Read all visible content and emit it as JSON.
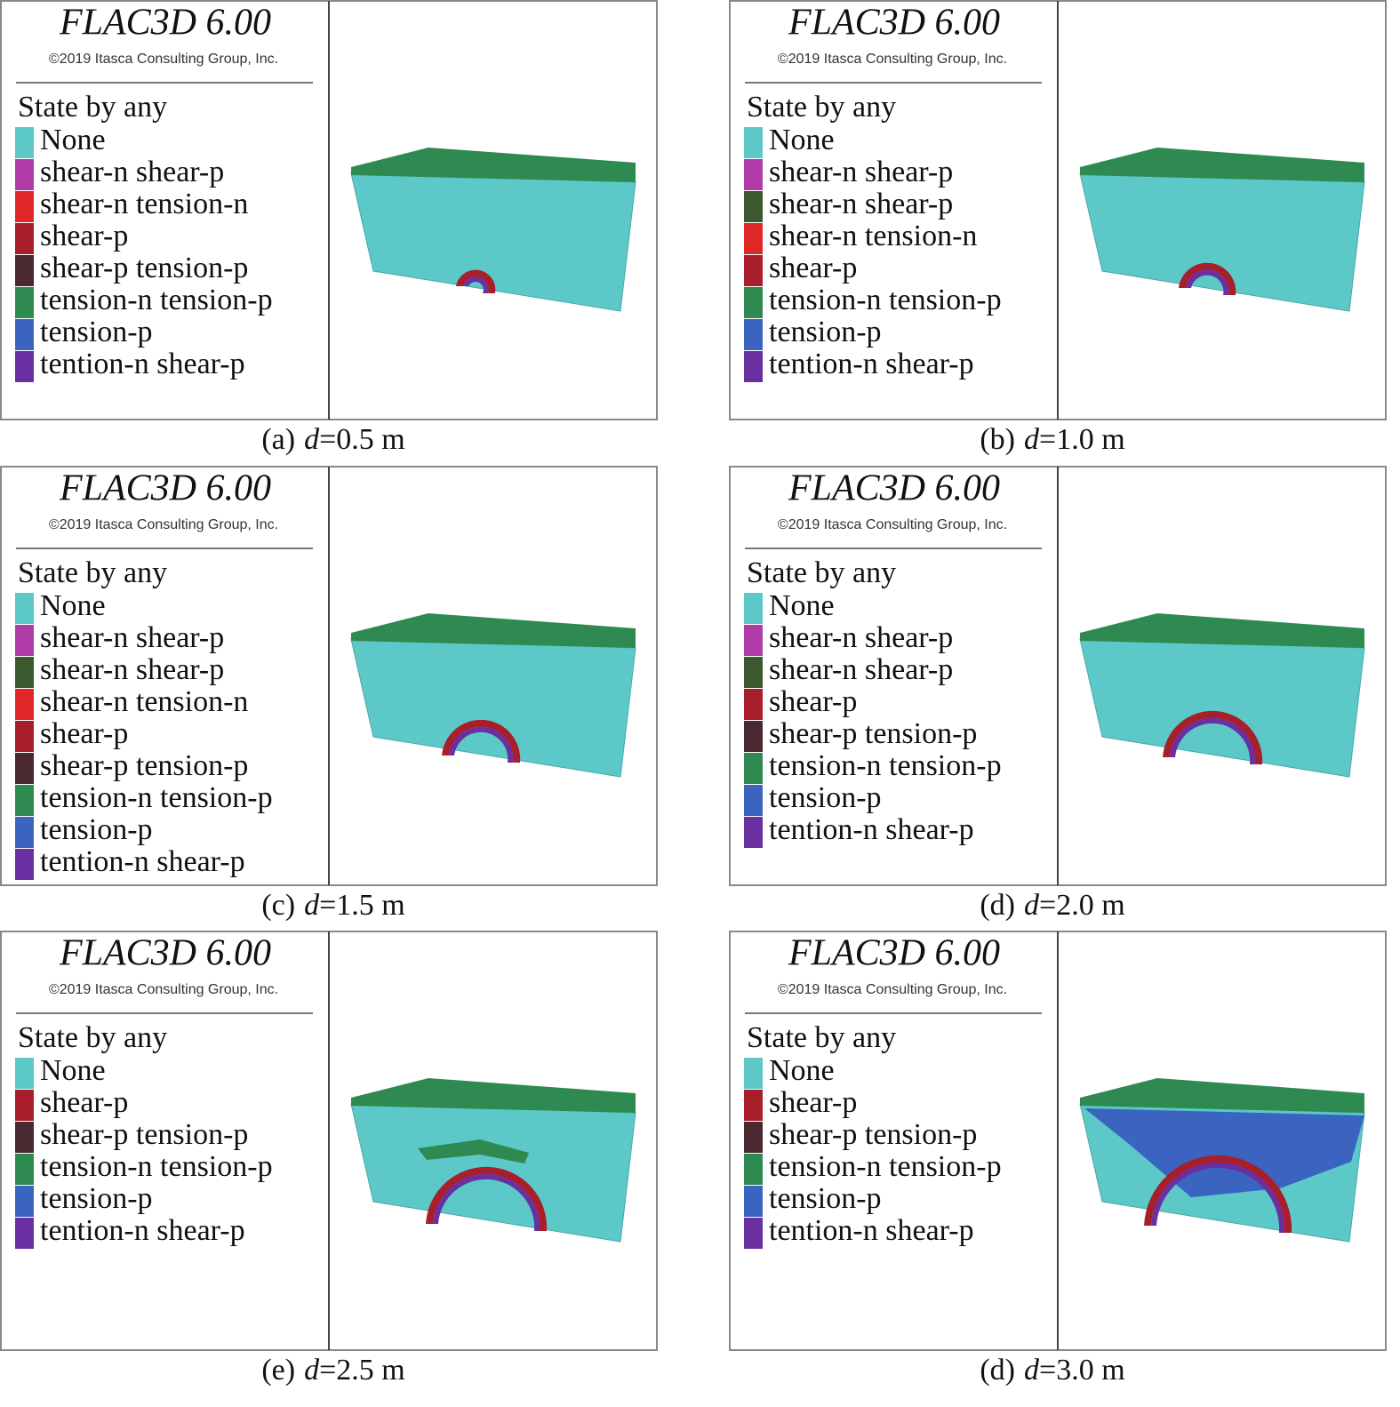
{
  "panels": [
    {
      "title": "FLAC3D 6.00",
      "copyright": "©2019 Itasca Consulting Group, Inc.",
      "legend_title": "State by any",
      "legend": [
        {
          "label": "None",
          "color": "#5cc8c8"
        },
        {
          "label": "shear-n shear-p",
          "color": "#b03ca8"
        },
        {
          "label": "shear-n tension-n",
          "color": "#e02828"
        },
        {
          "label": "shear-p",
          "color": "#a81e2a"
        },
        {
          "label": "shear-p tension-p",
          "color": "#4a2830"
        },
        {
          "label": "tension-n tension-p",
          "color": "#2e8a50"
        },
        {
          "label": "tension-p",
          "color": "#3a64c0"
        },
        {
          "label": "tention-n shear-p",
          "color": "#6a2fa0"
        }
      ],
      "caption": {
        "label": "(a)",
        "variable": "d",
        "value": "=0.5 m"
      }
    },
    {
      "title": "FLAC3D 6.00",
      "copyright": "©2019 Itasca Consulting Group, Inc.",
      "legend_title": "State by any",
      "legend": [
        {
          "label": "None",
          "color": "#5cc8c8"
        },
        {
          "label": "shear-n shear-p",
          "color": "#b03ca8"
        },
        {
          "label": "shear-n shear-p",
          "color": "#3c5a30"
        },
        {
          "label": "shear-n tension-n",
          "color": "#e02828"
        },
        {
          "label": "shear-p",
          "color": "#a81e2a"
        },
        {
          "label": "tension-n tension-p",
          "color": "#2e8a50"
        },
        {
          "label": "tension-p",
          "color": "#3a64c0"
        },
        {
          "label": "tention-n shear-p",
          "color": "#6a2fa0"
        }
      ],
      "caption": {
        "label": "(b)",
        "variable": "d",
        "value": "=1.0 m"
      }
    },
    {
      "title": "FLAC3D 6.00",
      "copyright": "©2019 Itasca Consulting Group, Inc.",
      "legend_title": "State by any",
      "legend": [
        {
          "label": "None",
          "color": "#5cc8c8"
        },
        {
          "label": "shear-n shear-p",
          "color": "#b03ca8"
        },
        {
          "label": "shear-n shear-p",
          "color": "#3c5a30"
        },
        {
          "label": "shear-n tension-n",
          "color": "#e02828"
        },
        {
          "label": "shear-p",
          "color": "#a81e2a"
        },
        {
          "label": "shear-p tension-p",
          "color": "#4a2830"
        },
        {
          "label": "tension-n tension-p",
          "color": "#2e8a50"
        },
        {
          "label": "tension-p",
          "color": "#3a64c0"
        },
        {
          "label": "tention-n shear-p",
          "color": "#6a2fa0"
        }
      ],
      "caption": {
        "label": "(c)",
        "variable": "d",
        "value": "=1.5 m"
      }
    },
    {
      "title": "FLAC3D 6.00",
      "copyright": "©2019 Itasca Consulting Group, Inc.",
      "legend_title": "State by any",
      "legend": [
        {
          "label": "None",
          "color": "#5cc8c8"
        },
        {
          "label": "shear-n shear-p",
          "color": "#b03ca8"
        },
        {
          "label": "shear-n shear-p",
          "color": "#3c5a30"
        },
        {
          "label": "shear-p",
          "color": "#a81e2a"
        },
        {
          "label": "shear-p tension-p",
          "color": "#4a2830"
        },
        {
          "label": "tension-n tension-p",
          "color": "#2e8a50"
        },
        {
          "label": "tension-p",
          "color": "#3a64c0"
        },
        {
          "label": "tention-n shear-p",
          "color": "#6a2fa0"
        }
      ],
      "caption": {
        "label": "(d)",
        "variable": "d",
        "value": "=2.0 m"
      }
    },
    {
      "title": "FLAC3D 6.00",
      "copyright": "©2019 Itasca Consulting Group, Inc.",
      "legend_title": "State by any",
      "legend": [
        {
          "label": "None",
          "color": "#5cc8c8"
        },
        {
          "label": "shear-p",
          "color": "#a81e2a"
        },
        {
          "label": "shear-p tension-p",
          "color": "#4a2830"
        },
        {
          "label": "tension-n tension-p",
          "color": "#2e8a50"
        },
        {
          "label": "tension-p",
          "color": "#3a64c0"
        },
        {
          "label": "tention-n shear-p",
          "color": "#6a2fa0"
        }
      ],
      "caption": {
        "label": "(e)",
        "variable": "d",
        "value": "=2.5 m"
      }
    },
    {
      "title": "FLAC3D 6.00",
      "copyright": "©2019 Itasca Consulting Group, Inc.",
      "legend_title": "State by any",
      "legend": [
        {
          "label": "None",
          "color": "#5cc8c8"
        },
        {
          "label": "shear-p",
          "color": "#a81e2a"
        },
        {
          "label": "shear-p tension-p",
          "color": "#4a2830"
        },
        {
          "label": "tension-n tension-p",
          "color": "#2e8a50"
        },
        {
          "label": "tension-p",
          "color": "#3a64c0"
        },
        {
          "label": "tention-n shear-p",
          "color": "#6a2fa0"
        }
      ],
      "caption": {
        "label": "(d)",
        "variable": "d",
        "value": "=3.0 m"
      }
    }
  ]
}
